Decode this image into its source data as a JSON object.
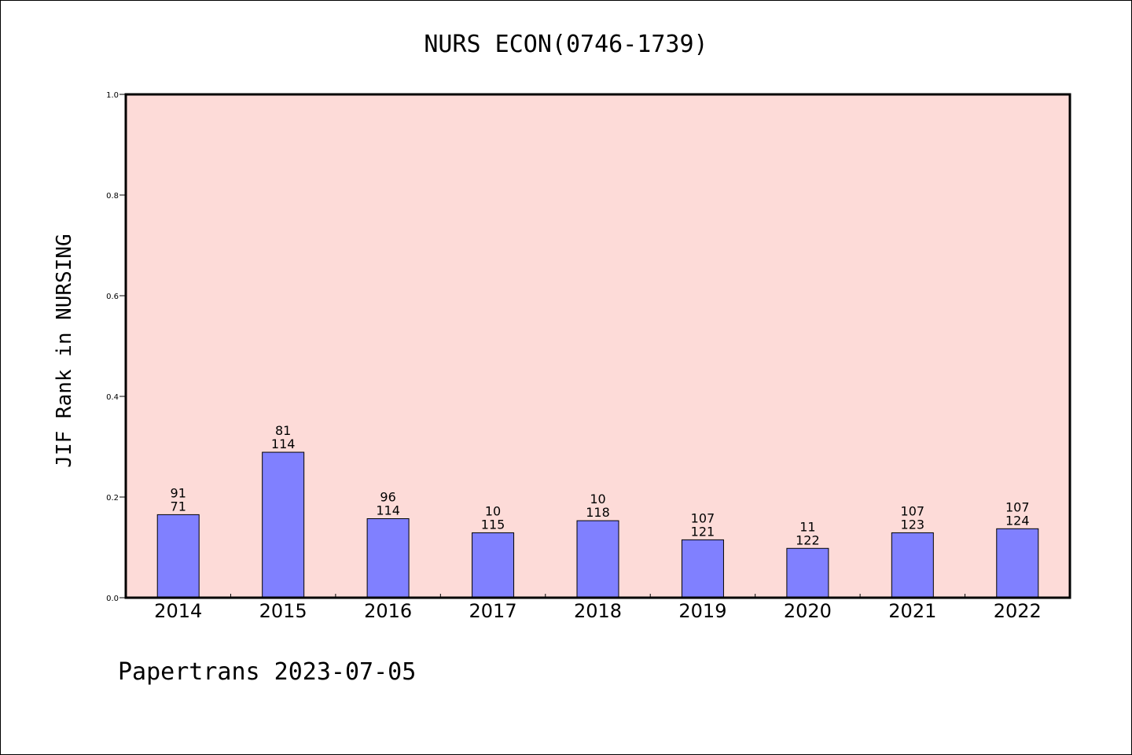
{
  "chart_data": {
    "type": "bar",
    "title": "NURS ECON(0746-1739)",
    "ylabel": "JIF Rank in NURSING",
    "xlabel": "",
    "ylim": [
      0,
      1.0
    ],
    "yticks": [
      "0.0",
      "0.2",
      "0.4",
      "0.6",
      "0.8",
      "1.0"
    ],
    "grid": false,
    "categories": [
      "2014",
      "2015",
      "2016",
      "2017",
      "2018",
      "2019",
      "2020",
      "2021",
      "2022"
    ],
    "values": [
      0.165,
      0.289,
      0.157,
      0.129,
      0.153,
      0.115,
      0.098,
      0.129,
      0.137
    ],
    "rank_labels": [
      "91",
      "81",
      "96",
      "10",
      "10",
      "107",
      "11",
      "107",
      "107"
    ],
    "total_labels": [
      "71",
      "114",
      "114",
      "115",
      "118",
      "121",
      "122",
      "123",
      "124"
    ],
    "colors": {
      "plot_background": "#fddbd8",
      "bar_fill": "#8080ff",
      "bar_stroke": "#000000"
    }
  },
  "footer": {
    "text": "Papertrans 2023-07-05"
  }
}
